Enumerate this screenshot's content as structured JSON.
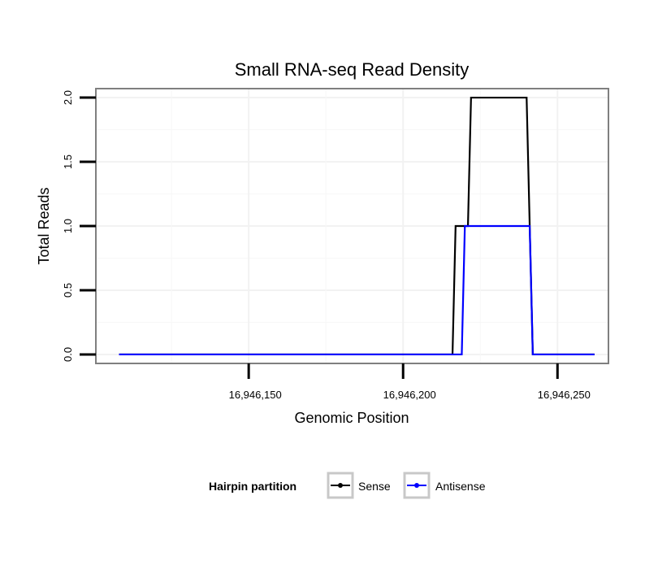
{
  "chart_data": {
    "type": "line",
    "title": "Small RNA-seq Read Density",
    "xlabel": "Genomic Position",
    "ylabel": "Total Reads",
    "xlim": [
      16946100.5,
      16946266.5
    ],
    "ylim": [
      -0.07,
      2.07
    ],
    "x_ticks": [
      16946150,
      16946200,
      16946250
    ],
    "x_tick_labels": [
      "16,946,150",
      "16,946,200",
      "16,946,250"
    ],
    "y_ticks": [
      0,
      0.5,
      1,
      1.5,
      2
    ],
    "y_tick_labels": [
      "0.0",
      "0.5",
      "1.0",
      "1.5",
      "2.0"
    ],
    "grid": true,
    "legend": {
      "title": "Hairpin partition",
      "position": "bottom"
    },
    "series": [
      {
        "name": "Sense",
        "color": "#000000",
        "x": [
          16946108,
          16946216,
          16946217,
          16946221,
          16946222,
          16946240,
          16946242,
          16946262
        ],
        "y": [
          0,
          0,
          1,
          1,
          2,
          2,
          0,
          0
        ]
      },
      {
        "name": "Antisense",
        "color": "#0000ff",
        "x": [
          16946108,
          16946219,
          16946220,
          16946241,
          16946242,
          16946262
        ],
        "y": [
          0,
          0,
          1,
          1,
          0,
          0
        ]
      }
    ]
  }
}
